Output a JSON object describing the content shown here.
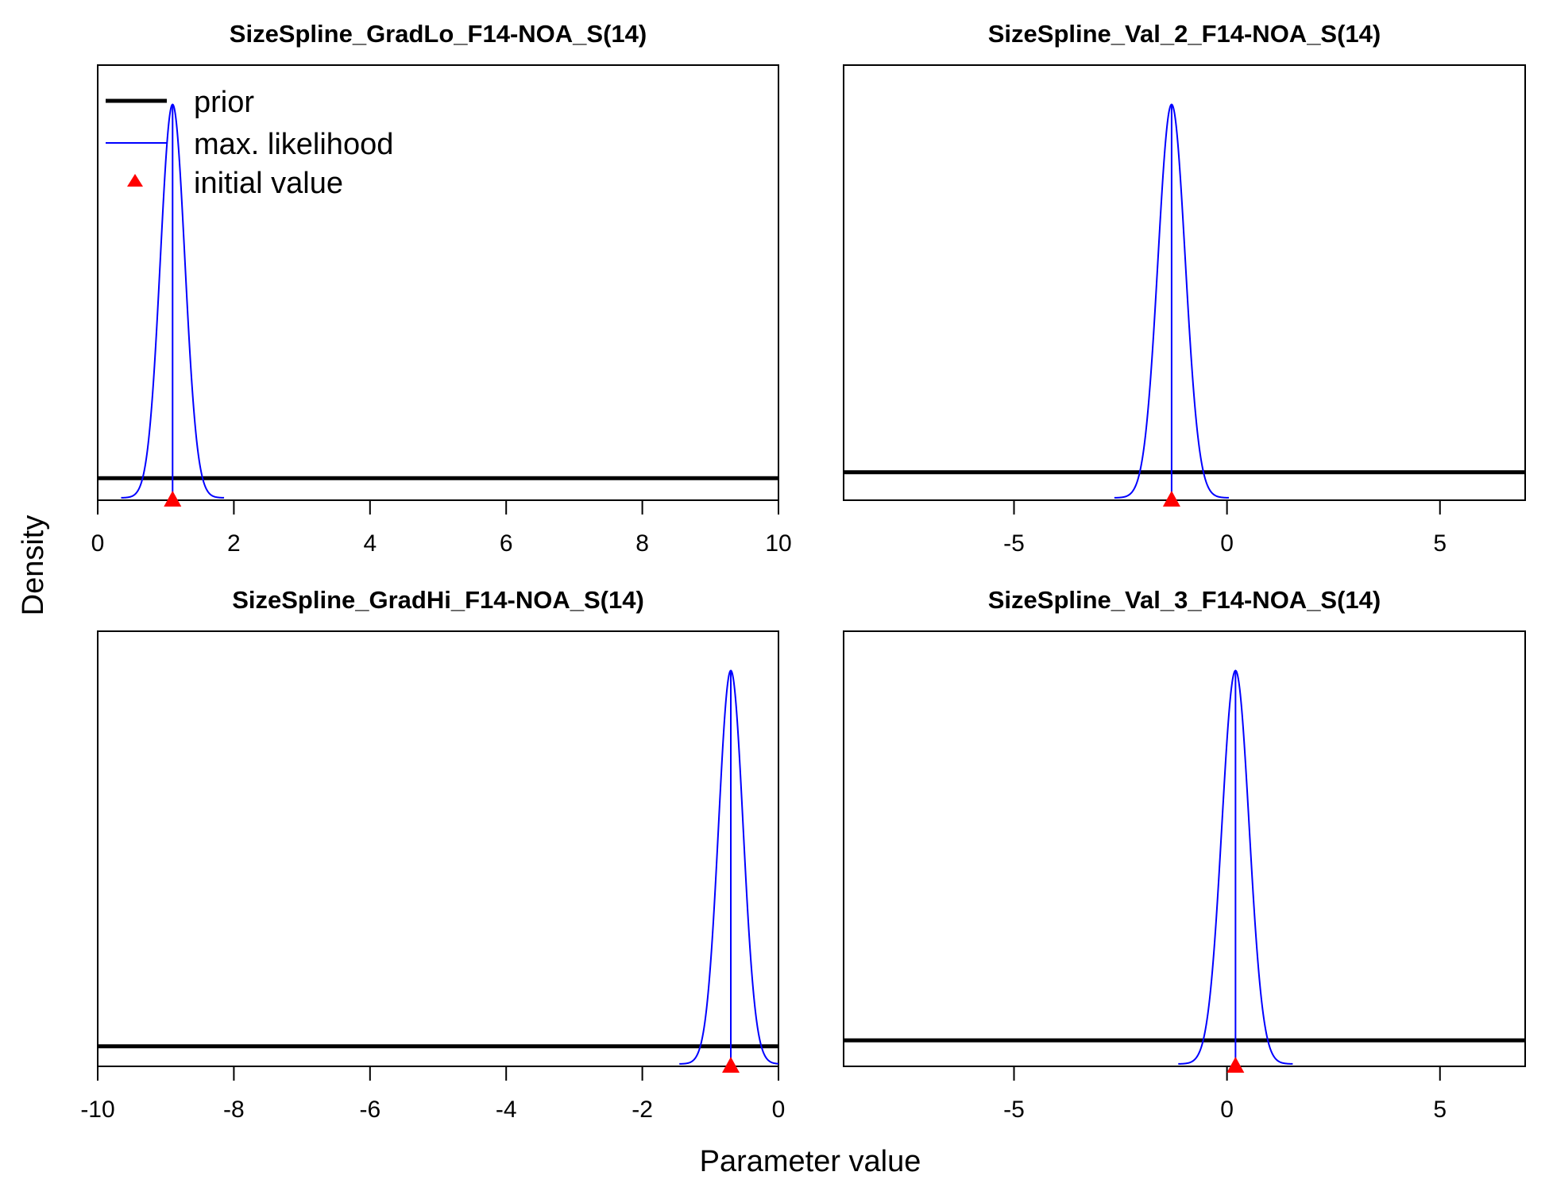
{
  "figure": {
    "ylabel": "Density",
    "xlabel": "Parameter value",
    "colors": {
      "prior": "#000000",
      "max_likelihood": "#0000ff",
      "initial_value": "#ff0000"
    },
    "legend": {
      "placement": "top-left of first panel",
      "entries": [
        {
          "label": "prior",
          "symbol": "thick-line",
          "color": "#000000"
        },
        {
          "label": "max. likelihood",
          "symbol": "thin-line",
          "color": "#0000ff"
        },
        {
          "label": "initial value",
          "symbol": "triangle",
          "color": "#ff0000"
        }
      ]
    }
  },
  "chart_data": [
    {
      "type": "line",
      "title": "SizeSpline_GradLo_F14-NOA_S(14)",
      "xlim": [
        0,
        10
      ],
      "xticks": [
        0,
        2,
        4,
        6,
        8,
        10
      ],
      "xtick_labels": [
        "0",
        "2",
        "4",
        "6",
        "8",
        "10"
      ],
      "ylim": [
        0,
        1.1
      ],
      "prior_density": 0.05,
      "max_likelihood": {
        "mean": 1.1,
        "sd": 0.18
      },
      "initial_value": 1.1
    },
    {
      "type": "line",
      "title": "SizeSpline_Val_2_F14-NOA_S(14)",
      "xlim": [
        -9,
        7
      ],
      "xticks": [
        -5,
        0,
        5
      ],
      "xtick_labels": [
        "-5",
        "0",
        "5"
      ],
      "ylim": [
        0,
        1.1
      ],
      "prior_density": 0.065,
      "max_likelihood": {
        "mean": -1.3,
        "sd": 0.32
      },
      "initial_value": -1.3
    },
    {
      "type": "line",
      "title": "SizeSpline_GradHi_F14-NOA_S(14)",
      "xlim": [
        -10,
        0
      ],
      "xticks": [
        -10,
        -8,
        -6,
        -4,
        -2,
        0
      ],
      "xtick_labels": [
        "-10",
        "-8",
        "-6",
        "-4",
        "-2",
        "0"
      ],
      "ylim": [
        0,
        1.1
      ],
      "prior_density": 0.045,
      "max_likelihood": {
        "mean": -0.7,
        "sd": 0.18
      },
      "initial_value": -0.7
    },
    {
      "type": "line",
      "title": "SizeSpline_Val_3_F14-NOA_S(14)",
      "xlim": [
        -9,
        7
      ],
      "xticks": [
        -5,
        0,
        5
      ],
      "xtick_labels": [
        "-5",
        "0",
        "5"
      ],
      "ylim": [
        0,
        1.1
      ],
      "prior_density": 0.06,
      "max_likelihood": {
        "mean": 0.2,
        "sd": 0.32
      },
      "initial_value": 0.2
    }
  ]
}
